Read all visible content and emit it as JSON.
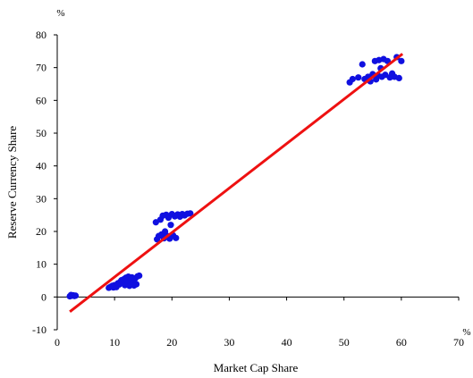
{
  "chart_data": {
    "type": "scatter",
    "xlabel": "Market Cap Share",
    "ylabel": "Reserve Currency Share",
    "x_unit": "%",
    "y_unit": "%",
    "xlim": [
      0,
      70
    ],
    "ylim": [
      -10,
      80
    ],
    "x_ticks": [
      "0",
      "10",
      "20",
      "30",
      "40",
      "50",
      "60",
      "70"
    ],
    "y_ticks": [
      "-10",
      "0",
      "10",
      "20",
      "30",
      "40",
      "50",
      "60",
      "70",
      "80"
    ],
    "grid": false,
    "legend": "none",
    "colors": {
      "points": "#1010e0",
      "fit_line": "#ee1111",
      "axis": "#000000"
    },
    "fit_line": {
      "x": [
        2.2,
        60.2
      ],
      "y": [
        -4.5,
        74.2
      ]
    },
    "points": [
      [
        2.2,
        0.2
      ],
      [
        2.4,
        0.6
      ],
      [
        2.6,
        0.4
      ],
      [
        2.8,
        0.5
      ],
      [
        3.0,
        0.3
      ],
      [
        3.2,
        0.4
      ],
      [
        9.0,
        2.8
      ],
      [
        9.3,
        3.1
      ],
      [
        9.6,
        3.4
      ],
      [
        9.8,
        2.9
      ],
      [
        10.0,
        3.6
      ],
      [
        10.3,
        3.0
      ],
      [
        10.6,
        4.2
      ],
      [
        10.8,
        3.8
      ],
      [
        11.0,
        4.6
      ],
      [
        11.2,
        5.1
      ],
      [
        11.4,
        4.4
      ],
      [
        11.6,
        5.4
      ],
      [
        11.8,
        3.6
      ],
      [
        12.0,
        5.9
      ],
      [
        12.2,
        4.9
      ],
      [
        12.4,
        6.2
      ],
      [
        12.6,
        3.4
      ],
      [
        12.8,
        5.1
      ],
      [
        13.0,
        6.0
      ],
      [
        13.2,
        4.1
      ],
      [
        13.4,
        3.5
      ],
      [
        13.6,
        5.7
      ],
      [
        13.8,
        3.9
      ],
      [
        14.0,
        6.3
      ],
      [
        14.3,
        6.5
      ],
      [
        17.2,
        22.8
      ],
      [
        17.4,
        17.6
      ],
      [
        17.7,
        18.6
      ],
      [
        18.0,
        23.6
      ],
      [
        18.2,
        19.1
      ],
      [
        18.4,
        24.8
      ],
      [
        18.6,
        17.9
      ],
      [
        18.8,
        20.0
      ],
      [
        19.0,
        25.1
      ],
      [
        19.2,
        18.6
      ],
      [
        19.4,
        24.2
      ],
      [
        19.6,
        17.8
      ],
      [
        19.8,
        22.0
      ],
      [
        20.0,
        25.3
      ],
      [
        20.2,
        18.8
      ],
      [
        20.5,
        24.6
      ],
      [
        20.7,
        18.0
      ],
      [
        21.0,
        25.2
      ],
      [
        21.4,
        24.5
      ],
      [
        21.8,
        25.3
      ],
      [
        22.2,
        24.9
      ],
      [
        22.7,
        25.4
      ],
      [
        23.2,
        25.5
      ],
      [
        51.0,
        65.5
      ],
      [
        51.5,
        66.5
      ],
      [
        52.5,
        67.0
      ],
      [
        53.2,
        71.0
      ],
      [
        53.6,
        66.5
      ],
      [
        54.2,
        67.2
      ],
      [
        54.6,
        65.8
      ],
      [
        55.0,
        68.0
      ],
      [
        55.4,
        72.0
      ],
      [
        55.6,
        66.4
      ],
      [
        55.9,
        67.6
      ],
      [
        56.1,
        72.3
      ],
      [
        56.4,
        69.8
      ],
      [
        56.6,
        67.2
      ],
      [
        56.9,
        72.6
      ],
      [
        57.2,
        67.8
      ],
      [
        57.6,
        72.0
      ],
      [
        58.0,
        67.0
      ],
      [
        58.4,
        68.2
      ],
      [
        58.8,
        67.2
      ],
      [
        59.2,
        73.2
      ],
      [
        59.6,
        66.8
      ],
      [
        60.0,
        72.0
      ]
    ]
  }
}
